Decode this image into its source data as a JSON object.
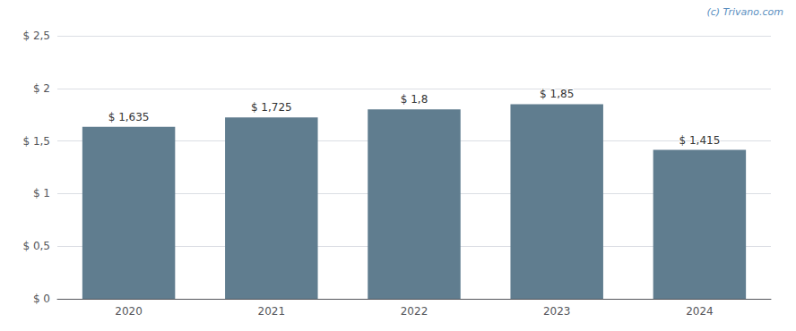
{
  "chart_data": {
    "type": "bar",
    "categories": [
      "2020",
      "2021",
      "2022",
      "2023",
      "2024"
    ],
    "values": [
      1.635,
      1.725,
      1.8,
      1.85,
      1.415
    ],
    "value_labels": [
      "$ 1,635",
      "$ 1,725",
      "$ 1,8",
      "$ 1,85",
      "$ 1,415"
    ],
    "data_labels": true,
    "color": "#607d8f",
    "ylim": [
      0,
      2.5
    ],
    "yticks": [
      {
        "value": 0,
        "label": "$ 0"
      },
      {
        "value": 0.5,
        "label": "$ 0,5"
      },
      {
        "value": 1.0,
        "label": "$ 1"
      },
      {
        "value": 1.5,
        "label": "$ 1,5"
      },
      {
        "value": 2.0,
        "label": "$ 2"
      },
      {
        "value": 2.5,
        "label": "$ 2,5"
      }
    ],
    "grid": true,
    "annotations": [
      "(c) Trivano.com"
    ]
  }
}
